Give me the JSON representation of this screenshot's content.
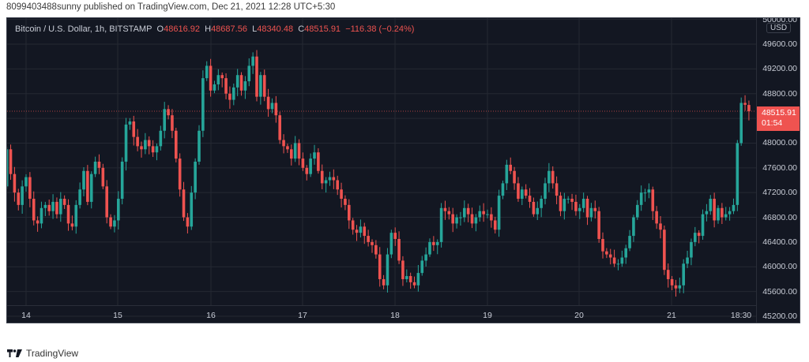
{
  "header": {
    "publisher_line": "8099403488sunny published on TradingView.com, Dec 21, 2021 12:28 UTC+5:30"
  },
  "legend": {
    "symbol": "Bitcoin / U.S. Dollar, 1h, BITSTAMP",
    "o_label": "O",
    "o_value": "48616.92",
    "h_label": "H",
    "h_value": "48687.56",
    "l_label": "L",
    "l_value": "48340.48",
    "c_label": "C",
    "c_value": "48515.91",
    "change": "−116.38 (−0.24%)"
  },
  "price_axis": {
    "currency": "USD",
    "labels": [
      "50000.00",
      "49600.00",
      "49200.00",
      "48800.00",
      "48000.00",
      "47600.00",
      "47200.00",
      "46800.00",
      "46400.00",
      "46000.00",
      "45600.00",
      "45200.00"
    ],
    "last_price": "48515.91",
    "countdown": "01:54"
  },
  "time_axis": {
    "labels": [
      "14",
      "15",
      "16",
      "17",
      "18",
      "19",
      "20",
      "21",
      "18:30"
    ]
  },
  "branding": {
    "name": "TradingView"
  },
  "colors": {
    "background": "#131722",
    "grid": "#242833",
    "up": "#26a69a",
    "down": "#ef5350",
    "text": "#c8ccd6"
  },
  "chart_data": {
    "type": "candlestick",
    "title": "Bitcoin / U.S. Dollar, 1h, BITSTAMP",
    "xlabel": "",
    "ylabel": "USD",
    "ylim": [
      45100,
      50100
    ],
    "grid": true,
    "x_ticks": [
      "14",
      "15",
      "16",
      "17",
      "18",
      "19",
      "20",
      "21",
      "18:30"
    ],
    "y_ticks": [
      45200,
      45600,
      46000,
      46400,
      46800,
      47200,
      47600,
      48000,
      48400,
      48800,
      49200,
      49600,
      50000
    ],
    "last": {
      "open": 48616.92,
      "high": 48687.56,
      "low": 48340.48,
      "close": 48515.91,
      "change": -116.38,
      "change_pct": -0.24
    },
    "close_series_approx": [
      47900,
      47500,
      47200,
      47000,
      47300,
      47450,
      47100,
      46750,
      46700,
      46950,
      47000,
      46900,
      47050,
      46850,
      47100,
      47000,
      46700,
      46650,
      47000,
      47250,
      47550,
      47050,
      47500,
      47700,
      47600,
      47300,
      46800,
      46650,
      46750,
      47100,
      47700,
      48300,
      48350,
      48100,
      47950,
      47900,
      48050,
      47950,
      47850,
      47950,
      48200,
      48550,
      48450,
      48200,
      47750,
      47250,
      46800,
      46650,
      47200,
      47700,
      48200,
      49050,
      49250,
      48850,
      48950,
      49100,
      49050,
      48800,
      48700,
      48900,
      49100,
      48850,
      49000,
      49250,
      49400,
      48750,
      49100,
      48750,
      48550,
      48650,
      48450,
      48050,
      47950,
      47900,
      47750,
      48000,
      47750,
      47600,
      47500,
      47750,
      47850,
      47550,
      47350,
      47400,
      47450,
      47400,
      47250,
      47100,
      47000,
      46750,
      46600,
      46550,
      46650,
      46500,
      46400,
      46350,
      46200,
      45800,
      45700,
      46200,
      46550,
      46450,
      46100,
      45800,
      45850,
      45750,
      45700,
      45900,
      46100,
      46200,
      46400,
      46350,
      46400,
      46950,
      46900,
      46850,
      46700,
      46800,
      46800,
      46950,
      46850,
      46700,
      46800,
      46900,
      46850,
      46850,
      46750,
      46600,
      47150,
      47350,
      47650,
      47550,
      47350,
      47100,
      47250,
      47150,
      47050,
      46850,
      46950,
      47100,
      47350,
      47550,
      47350,
      47150,
      46900,
      47100,
      47100,
      47050,
      46900,
      46950,
      47100,
      46800,
      46950,
      46900,
      46450,
      46250,
      46200,
      46150,
      46050,
      46050,
      46150,
      46300,
      46500,
      46800,
      47000,
      47200,
      47200,
      47250,
      46900,
      46700,
      46600,
      45950,
      45800,
      45700,
      45650,
      45700,
      46050,
      46150,
      46400,
      46550,
      46500,
      46850,
      46900,
      47100,
      46750,
      46950,
      46800,
      46850,
      46900,
      47000,
      48000,
      48650,
      48620,
      48516
    ]
  }
}
